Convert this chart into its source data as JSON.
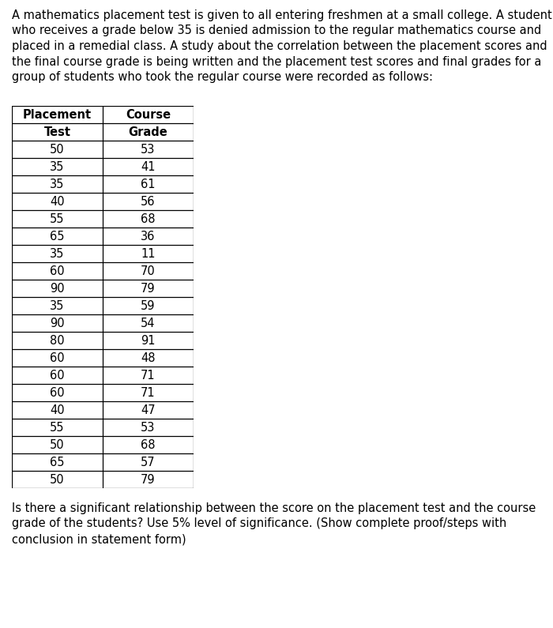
{
  "intro_text_lines": [
    "A mathematics placement test is given to all entering freshmen at a small college. A student",
    "who receives a grade below 35 is denied admission to the regular mathematics course and",
    "placed in a remedial class. A study about the correlation between the placement scores and",
    "the final course grade is being written and the placement test scores and final grades for a",
    "group of students who took the regular course were recorded as follows:"
  ],
  "col1_header1": "Placement",
  "col1_header2": "Test",
  "col2_header1": "Course",
  "col2_header2": "Grade",
  "placement_scores": [
    50,
    35,
    35,
    40,
    55,
    65,
    35,
    60,
    90,
    35,
    90,
    80,
    60,
    60,
    60,
    40,
    55,
    50,
    65,
    50
  ],
  "course_grades": [
    53,
    41,
    61,
    56,
    68,
    36,
    11,
    70,
    79,
    59,
    54,
    91,
    48,
    71,
    71,
    47,
    53,
    68,
    57,
    79
  ],
  "footer_text_lines": [
    "Is there a significant relationship between the score on the placement test and the course",
    "grade of the students? Use 5% level of significance. (Show complete proof/steps with",
    "conclusion in statement form)"
  ],
  "bg_color": "#ffffff",
  "text_color": "#000000",
  "table_border_color": "#000000",
  "font_size_body": 10.5,
  "font_size_table_data": 10.5,
  "font_size_header": 10.5
}
